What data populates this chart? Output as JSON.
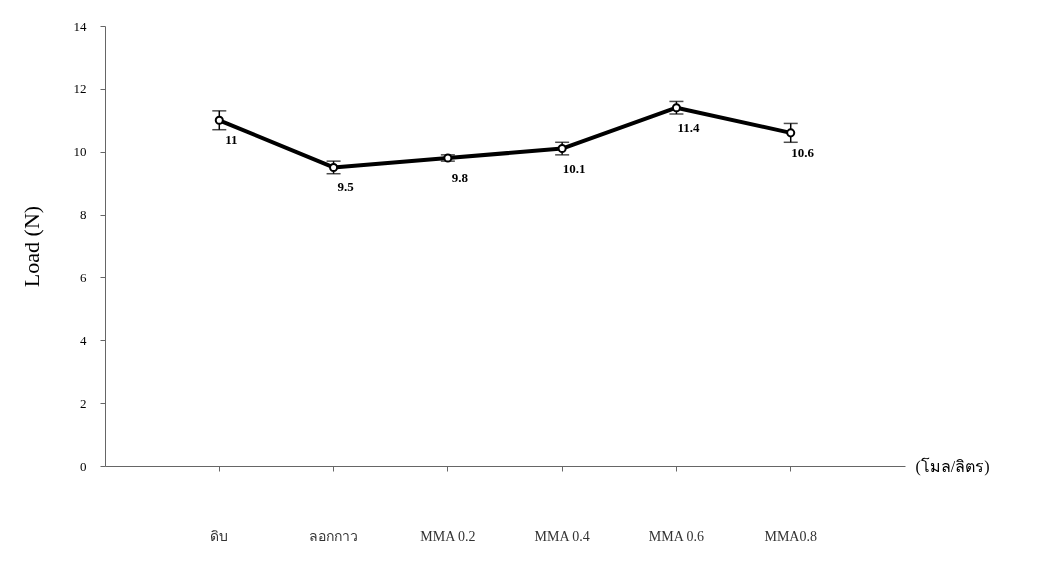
{
  "chart_data": {
    "type": "line",
    "xlabel": "(โมล/ลิตร)",
    "ylabel": "Load  (N)",
    "categories": [
      "ดิบ",
      "ลอกกาว",
      "MMA 0.2",
      "MMA 0.4",
      "MMA 0.6",
      "MMA0.8"
    ],
    "series": [
      {
        "color": "#000000",
        "values": [
          11,
          9.5,
          9.8,
          10.1,
          11.4,
          10.6
        ],
        "errors": [
          0.3,
          0.2,
          0.1,
          0.2,
          0.2,
          0.3
        ]
      }
    ],
    "ylim": [
      0,
      14
    ],
    "yticks": [
      0,
      2,
      4,
      6,
      8,
      10,
      12,
      14
    ],
    "data_labels": true,
    "marker": "circle",
    "line_style": "solid",
    "grid": false
  }
}
